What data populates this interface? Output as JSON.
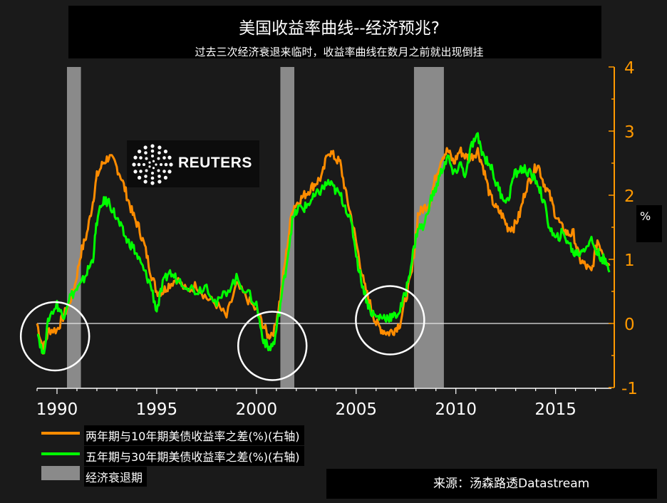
{
  "header": {
    "title": "美国收益率曲线--经济预兆?",
    "subtitle": "过去三次经济衰退来临时，收益率曲线在数月之前就出现倒挂"
  },
  "logo": {
    "text": "REUTERS",
    "icon": "reuters-dot-globe-icon"
  },
  "axis_unit_label": "%",
  "source": "来源：汤森路透Datastream",
  "legend": [
    {
      "label": "两年期与10年期美债收益率之差(%)(右轴)",
      "color": "#ff8c00"
    },
    {
      "label": "五年期与30年期美债收益率之差(%)(右轴)",
      "color": "#00ff00"
    },
    {
      "label": "经济衰退期",
      "color": "#8a8a8a"
    }
  ],
  "chart_data": {
    "type": "line",
    "title": "美国收益率曲线--经济预兆?",
    "subtitle": "过去三次经济衰退来临时，收益率曲线在数月之前就出现倒挂",
    "xlim": [
      1989.0,
      2017.8
    ],
    "x_ticks": [
      1990,
      1995,
      2000,
      2005,
      2010,
      2015
    ],
    "x_tick_labels": [
      "1990",
      "1995",
      "2000",
      "2005",
      "2010",
      "2015"
    ],
    "ylim": [
      -1,
      4
    ],
    "y_ticks": [
      -1,
      0,
      1,
      2,
      3,
      4
    ],
    "y_tick_labels": [
      "-1",
      "0",
      "1",
      "2",
      "3",
      "4"
    ],
    "y_axis_side": "right",
    "y_axis_color": "#ff9900",
    "zero_line": 0,
    "grid": false,
    "legend_position": "bottom-left",
    "recessions": [
      {
        "start": 1990.5,
        "end": 1991.2
      },
      {
        "start": 2001.2,
        "end": 2001.9
      },
      {
        "start": 2007.9,
        "end": 2009.4
      }
    ],
    "circled_inversions": [
      {
        "x": 1989.9,
        "y": -0.2
      },
      {
        "x": 2000.8,
        "y": -0.35
      },
      {
        "x": 2006.7,
        "y": 0.05
      }
    ],
    "series": [
      {
        "name": "两年期与10年期美债收益率之差(%)(右轴)",
        "color": "#ff8c00",
        "x": [
          1989.0,
          1989.3,
          1989.6,
          1990.0,
          1990.3,
          1990.6,
          1990.9,
          1991.2,
          1991.5,
          1991.8,
          1992.0,
          1992.3,
          1992.6,
          1992.9,
          1993.2,
          1993.5,
          1993.8,
          1994.1,
          1994.4,
          1994.7,
          1995.0,
          1995.3,
          1995.6,
          1996.0,
          1996.5,
          1997.0,
          1997.5,
          1998.0,
          1998.5,
          1999.0,
          1999.5,
          2000.0,
          2000.3,
          2000.6,
          2000.9,
          2001.2,
          2001.5,
          2001.8,
          2002.1,
          2002.4,
          2002.7,
          2003.0,
          2003.3,
          2003.6,
          2003.9,
          2004.2,
          2004.5,
          2004.8,
          2005.1,
          2005.4,
          2005.7,
          2006.0,
          2006.3,
          2006.6,
          2006.9,
          2007.2,
          2007.5,
          2007.8,
          2008.1,
          2008.4,
          2008.7,
          2009.0,
          2009.3,
          2009.6,
          2009.9,
          2010.2,
          2010.5,
          2010.8,
          2011.1,
          2011.4,
          2011.7,
          2012.0,
          2012.3,
          2012.6,
          2012.9,
          2013.2,
          2013.5,
          2013.8,
          2014.1,
          2014.4,
          2014.7,
          2015.0,
          2015.3,
          2015.6,
          2015.9,
          2016.2,
          2016.5,
          2016.8,
          2017.1,
          2017.4,
          2017.7
        ],
        "y": [
          0.0,
          -0.4,
          -0.1,
          -0.1,
          0.1,
          0.3,
          0.6,
          1.1,
          1.4,
          1.9,
          2.3,
          2.5,
          2.6,
          2.5,
          2.3,
          2.0,
          1.7,
          1.5,
          1.2,
          0.8,
          0.5,
          0.5,
          0.6,
          0.7,
          0.5,
          0.6,
          0.4,
          0.3,
          0.1,
          0.6,
          0.4,
          0.2,
          0.0,
          -0.2,
          -0.1,
          0.4,
          1.1,
          1.8,
          1.9,
          2.0,
          2.1,
          2.2,
          2.3,
          2.7,
          2.6,
          2.5,
          2.0,
          1.6,
          1.1,
          0.6,
          0.3,
          0.0,
          -0.1,
          -0.15,
          -0.1,
          0.0,
          0.4,
          0.8,
          1.7,
          1.8,
          1.9,
          2.3,
          2.6,
          2.7,
          2.5,
          2.7,
          2.6,
          2.6,
          2.7,
          2.4,
          2.0,
          1.8,
          1.7,
          1.5,
          1.5,
          1.7,
          2.1,
          2.3,
          2.5,
          2.2,
          2.0,
          1.7,
          1.5,
          1.4,
          1.4,
          1.0,
          0.9,
          0.8,
          1.3,
          1.1,
          0.9
        ]
      },
      {
        "name": "五年期与30年期美债收益率之差(%)(右轴)",
        "color": "#00ff00",
        "x": [
          1989.0,
          1989.3,
          1989.6,
          1990.0,
          1990.3,
          1990.6,
          1990.9,
          1991.2,
          1991.5,
          1991.8,
          1992.0,
          1992.3,
          1992.6,
          1992.9,
          1993.2,
          1993.5,
          1993.8,
          1994.1,
          1994.4,
          1994.7,
          1995.0,
          1995.3,
          1995.6,
          1996.0,
          1996.5,
          1997.0,
          1997.5,
          1998.0,
          1998.5,
          1999.0,
          1999.5,
          2000.0,
          2000.3,
          2000.6,
          2000.9,
          2001.2,
          2001.5,
          2001.8,
          2002.1,
          2002.4,
          2002.7,
          2003.0,
          2003.3,
          2003.6,
          2003.9,
          2004.2,
          2004.5,
          2004.8,
          2005.1,
          2005.4,
          2005.7,
          2006.0,
          2006.3,
          2006.6,
          2006.9,
          2007.2,
          2007.5,
          2007.8,
          2008.1,
          2008.4,
          2008.7,
          2009.0,
          2009.3,
          2009.6,
          2009.9,
          2010.2,
          2010.5,
          2010.8,
          2011.1,
          2011.4,
          2011.7,
          2012.0,
          2012.3,
          2012.6,
          2012.9,
          2013.2,
          2013.5,
          2013.8,
          2014.1,
          2014.4,
          2014.7,
          2015.0,
          2015.3,
          2015.6,
          2015.9,
          2016.2,
          2016.5,
          2016.8,
          2017.1,
          2017.4,
          2017.7
        ],
        "y": [
          -0.1,
          -0.5,
          0.1,
          0.3,
          0.1,
          0.4,
          0.5,
          0.6,
          0.8,
          1.0,
          1.6,
          1.9,
          1.9,
          1.7,
          1.5,
          1.3,
          1.2,
          1.0,
          0.8,
          0.6,
          0.2,
          0.6,
          0.8,
          0.7,
          0.6,
          0.5,
          0.6,
          0.3,
          0.5,
          0.7,
          0.5,
          0.3,
          -0.2,
          -0.4,
          -0.3,
          0.3,
          0.9,
          1.6,
          1.8,
          1.8,
          1.9,
          2.0,
          2.1,
          2.2,
          2.1,
          2.0,
          1.8,
          1.5,
          0.9,
          0.5,
          0.2,
          0.1,
          0.1,
          0.1,
          0.1,
          0.2,
          0.5,
          1.0,
          1.5,
          1.5,
          1.9,
          2.1,
          2.4,
          2.6,
          2.3,
          2.5,
          2.3,
          2.8,
          2.9,
          2.6,
          2.5,
          2.2,
          2.0,
          1.9,
          2.3,
          2.4,
          2.4,
          2.3,
          2.2,
          1.9,
          1.5,
          1.3,
          1.4,
          1.3,
          1.1,
          1.1,
          1.2,
          1.3,
          1.1,
          1.0,
          0.8
        ]
      }
    ]
  }
}
